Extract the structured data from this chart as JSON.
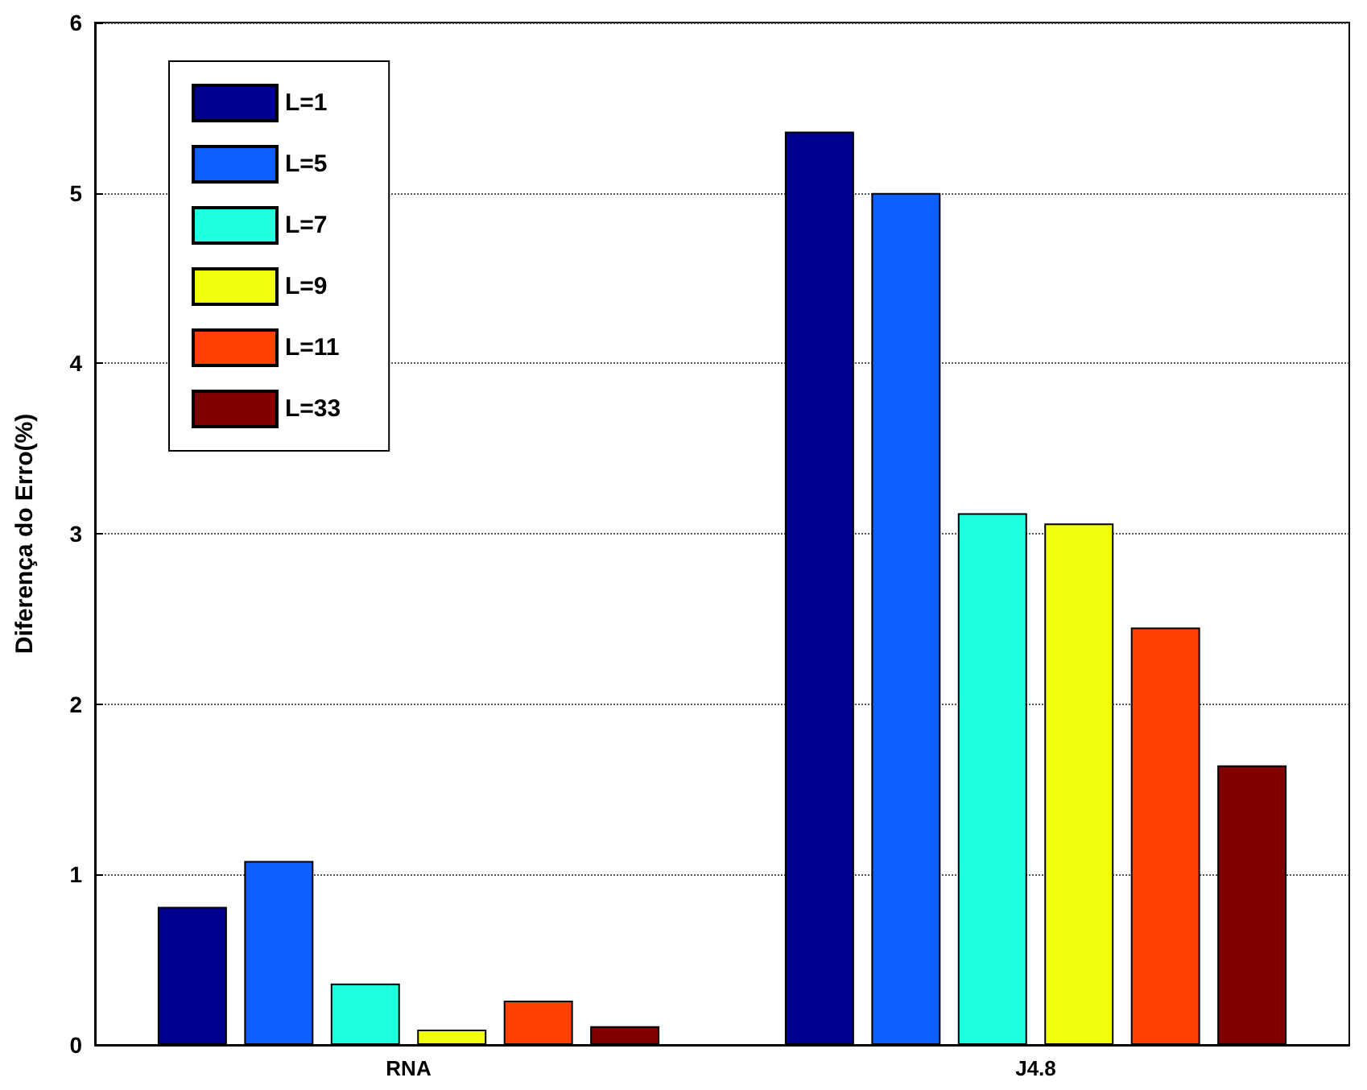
{
  "chart_data": {
    "type": "bar",
    "ylabel": "Diferença do Erro(%)",
    "categories": [
      "RNA",
      "J4.8"
    ],
    "series": [
      {
        "name": "L=1",
        "color": "#00008f",
        "values": [
          0.81,
          5.36
        ]
      },
      {
        "name": "L=5",
        "color": "#0f5fff",
        "values": [
          1.08,
          5.0
        ]
      },
      {
        "name": "L=7",
        "color": "#20ffdf",
        "values": [
          0.36,
          3.12
        ]
      },
      {
        "name": "L=9",
        "color": "#efff10",
        "values": [
          0.09,
          3.06
        ]
      },
      {
        "name": "L=11",
        "color": "#ff4000",
        "values": [
          0.26,
          2.45
        ]
      },
      {
        "name": "L=33",
        "color": "#800000",
        "values": [
          0.11,
          1.64
        ]
      }
    ],
    "ylim": [
      0,
      6
    ],
    "yticks": [
      0,
      1,
      2,
      3,
      4,
      5,
      6
    ],
    "grid": "y",
    "legend": "top left"
  }
}
